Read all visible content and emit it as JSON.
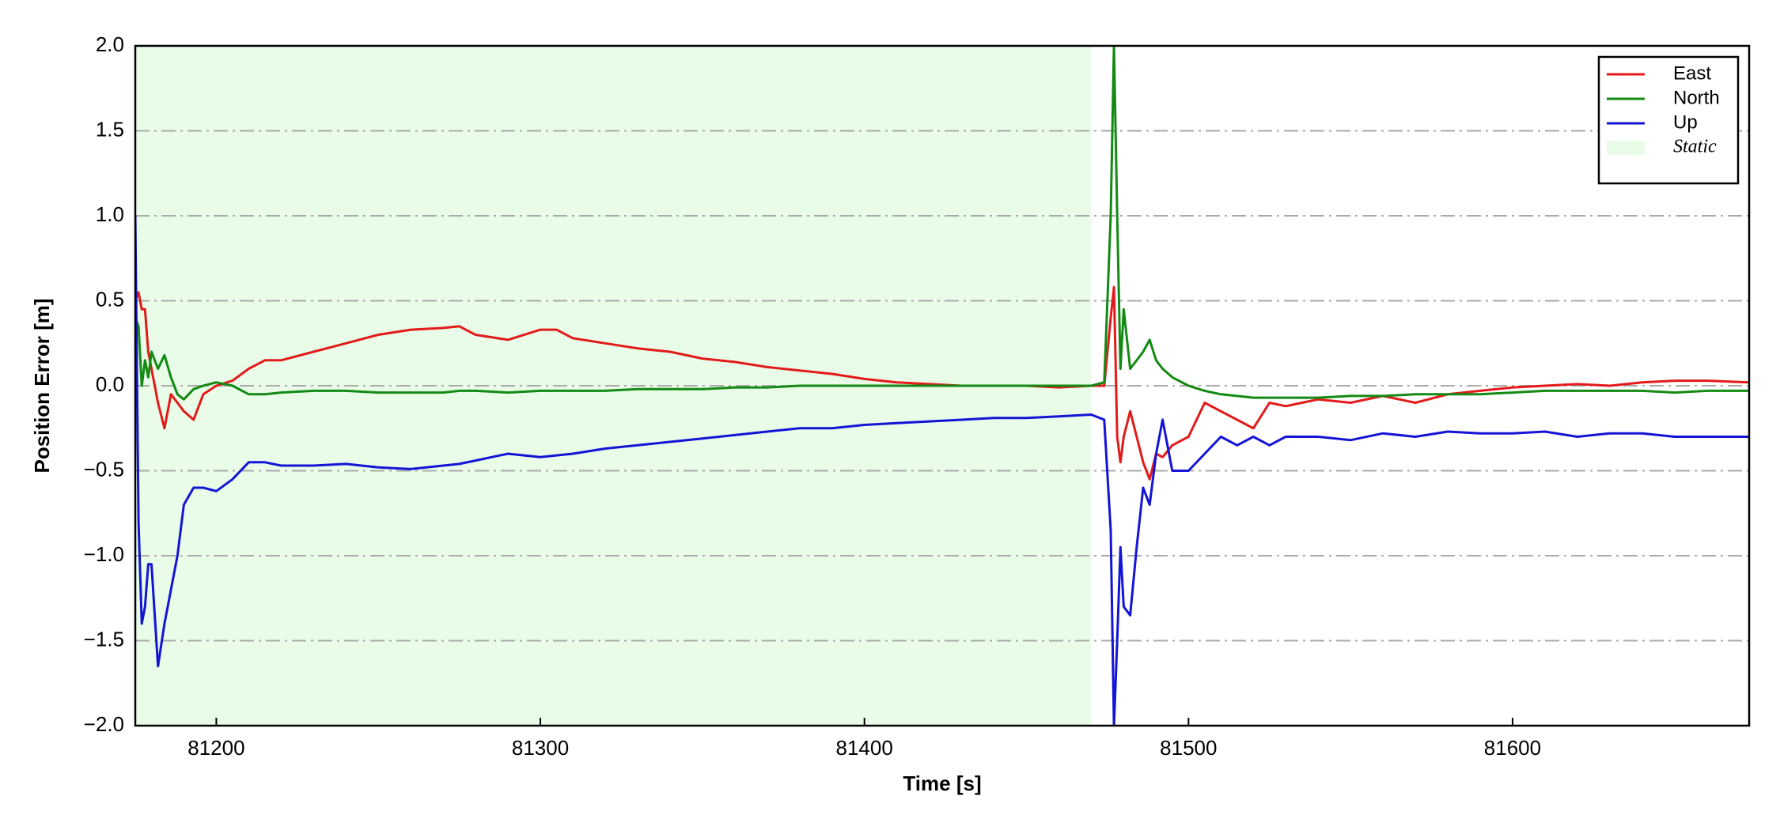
{
  "chart_data": {
    "type": "line",
    "xlabel": "Time [s]",
    "ylabel": "Position Error [m]",
    "xlim": [
      81175,
      81673
    ],
    "ylim": [
      -2,
      2
    ],
    "xticks": [
      81200,
      81300,
      81400,
      81500,
      81600
    ],
    "yticks": [
      {
        "value": -2,
        "label": "−2.0"
      },
      {
        "value": -1.5,
        "label": "−1.5"
      },
      {
        "value": -1,
        "label": "−1.0"
      },
      {
        "value": -0.5,
        "label": "−0.5"
      },
      {
        "value": 0,
        "label": "0.0"
      },
      {
        "value": 0.5,
        "label": "0.5"
      },
      {
        "value": 1,
        "label": "1.0"
      },
      {
        "value": 1.5,
        "label": "1.5"
      },
      {
        "value": 2,
        "label": "2.0"
      }
    ],
    "grid": true,
    "legend": "upper right",
    "static_span": [
      81175,
      81470
    ],
    "static_name": "Static",
    "static_color": "#e8fce8",
    "x": [
      81175,
      81176,
      81177,
      81178,
      81179,
      81180,
      81182,
      81184,
      81186,
      81188,
      81190,
      81193,
      81196,
      81200,
      81205,
      81210,
      81215,
      81220,
      81230,
      81240,
      81250,
      81260,
      81270,
      81275,
      81280,
      81290,
      81300,
      81305,
      81310,
      81320,
      81330,
      81340,
      81350,
      81360,
      81370,
      81380,
      81390,
      81400,
      81410,
      81420,
      81430,
      81440,
      81450,
      81460,
      81470,
      81474,
      81476,
      81477,
      81478,
      81479,
      81480,
      81482,
      81484,
      81486,
      81488,
      81490,
      81492,
      81495,
      81500,
      81505,
      81510,
      81515,
      81520,
      81525,
      81530,
      81540,
      81550,
      81560,
      81570,
      81580,
      81590,
      81600,
      81610,
      81620,
      81630,
      81640,
      81650,
      81660,
      81673
    ],
    "series": [
      {
        "name": "East",
        "color": "#e31a1a",
        "values": [
          0.5,
          0.55,
          0.45,
          0.45,
          0.2,
          0.1,
          -0.1,
          -0.25,
          -0.05,
          -0.1,
          -0.15,
          -0.2,
          -0.05,
          0.0,
          0.03,
          0.1,
          0.15,
          0.15,
          0.2,
          0.25,
          0.3,
          0.33,
          0.34,
          0.35,
          0.3,
          0.27,
          0.33,
          0.33,
          0.28,
          0.25,
          0.22,
          0.2,
          0.16,
          0.14,
          0.11,
          0.09,
          0.07,
          0.04,
          0.02,
          0.01,
          0.0,
          0.0,
          0.0,
          -0.01,
          0.0,
          0.0,
          0.4,
          0.58,
          -0.3,
          -0.45,
          -0.3,
          -0.15,
          -0.3,
          -0.45,
          -0.55,
          -0.4,
          -0.42,
          -0.35,
          -0.3,
          -0.1,
          -0.15,
          -0.2,
          -0.25,
          -0.1,
          -0.12,
          -0.08,
          -0.1,
          -0.06,
          -0.1,
          -0.05,
          -0.03,
          -0.01,
          0.0,
          0.01,
          0.0,
          0.02,
          0.03,
          0.03,
          0.02
        ]
      },
      {
        "name": "North",
        "color": "#138a13",
        "values": [
          0.4,
          0.35,
          0.0,
          0.15,
          0.05,
          0.2,
          0.1,
          0.18,
          0.05,
          -0.05,
          -0.08,
          -0.02,
          0.0,
          0.02,
          0.0,
          -0.05,
          -0.05,
          -0.04,
          -0.03,
          -0.03,
          -0.04,
          -0.04,
          -0.04,
          -0.03,
          -0.03,
          -0.04,
          -0.03,
          -0.03,
          -0.03,
          -0.03,
          -0.02,
          -0.02,
          -0.02,
          -0.01,
          -0.01,
          0.0,
          0.0,
          0.0,
          0.0,
          0.0,
          0.0,
          0.0,
          0.0,
          0.0,
          0.0,
          0.02,
          1.0,
          2.0,
          1.0,
          0.1,
          0.45,
          0.1,
          0.15,
          0.2,
          0.27,
          0.15,
          0.1,
          0.05,
          0.0,
          -0.03,
          -0.05,
          -0.06,
          -0.07,
          -0.07,
          -0.07,
          -0.07,
          -0.06,
          -0.06,
          -0.05,
          -0.05,
          -0.05,
          -0.04,
          -0.03,
          -0.03,
          -0.03,
          -0.03,
          -0.04,
          -0.03,
          -0.03
        ]
      },
      {
        "name": "Up",
        "color": "#1414d6",
        "values": [
          1.0,
          -0.8,
          -1.4,
          -1.3,
          -1.05,
          -1.05,
          -1.65,
          -1.4,
          -1.2,
          -1.0,
          -0.7,
          -0.6,
          -0.6,
          -0.62,
          -0.55,
          -0.45,
          -0.45,
          -0.47,
          -0.47,
          -0.46,
          -0.48,
          -0.49,
          -0.47,
          -0.46,
          -0.44,
          -0.4,
          -0.42,
          -0.41,
          -0.4,
          -0.37,
          -0.35,
          -0.33,
          -0.31,
          -0.29,
          -0.27,
          -0.25,
          -0.25,
          -0.23,
          -0.22,
          -0.21,
          -0.2,
          -0.19,
          -0.19,
          -0.18,
          -0.17,
          -0.2,
          -0.85,
          -2.0,
          -1.5,
          -0.95,
          -1.3,
          -1.35,
          -0.95,
          -0.6,
          -0.7,
          -0.4,
          -0.2,
          -0.5,
          -0.5,
          -0.4,
          -0.3,
          -0.35,
          -0.3,
          -0.35,
          -0.3,
          -0.3,
          -0.32,
          -0.28,
          -0.3,
          -0.27,
          -0.28,
          -0.28,
          -0.27,
          -0.3,
          -0.28,
          -0.28,
          -0.3,
          -0.3,
          -0.3
        ]
      }
    ]
  }
}
